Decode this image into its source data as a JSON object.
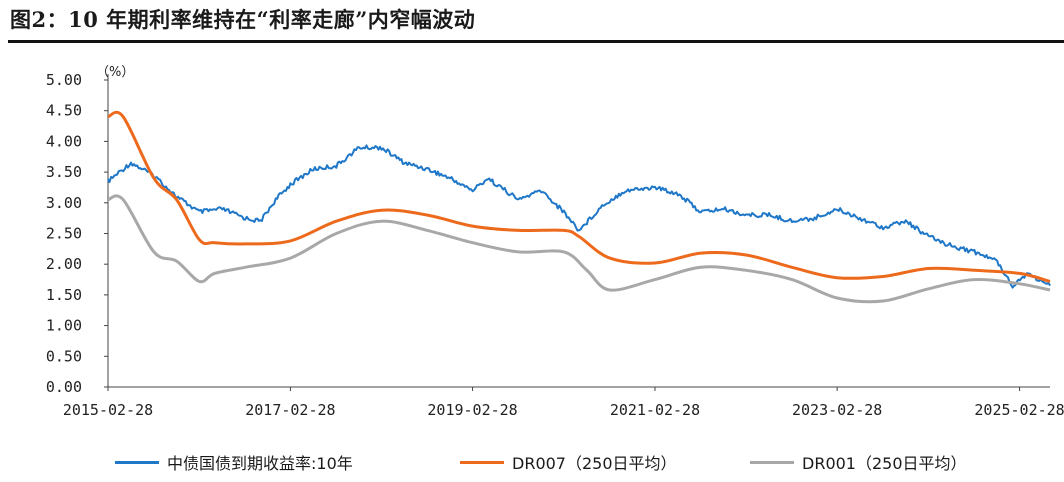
{
  "title": "图2：10 年期利率维持在“利率走廊”内窄幅波动",
  "chart_data": {
    "type": "line",
    "unit_label": "（%）",
    "ylim": [
      0,
      5
    ],
    "yticks": [
      "5.00",
      "4.50",
      "4.00",
      "3.50",
      "3.00",
      "2.50",
      "2.00",
      "1.50",
      "1.00",
      "0.50",
      "0.00"
    ],
    "xlim": [
      "2015-02-28",
      "2025-06-30"
    ],
    "xticks": [
      "2015-02-28",
      "2017-02-28",
      "2019-02-28",
      "2021-02-28",
      "2023-02-28",
      "2025-02-28"
    ],
    "grid": false,
    "legend_position": "bottom",
    "series": [
      {
        "name": "中债国债到期收益率:10年",
        "color": "#1f77c8",
        "x": [
          "2015-02-28",
          "2015-05-31",
          "2015-08-31",
          "2015-11-30",
          "2016-02-29",
          "2016-05-31",
          "2016-08-31",
          "2016-10-31",
          "2016-12-31",
          "2017-02-28",
          "2017-05-31",
          "2017-08-31",
          "2017-11-30",
          "2018-02-28",
          "2018-05-31",
          "2018-08-31",
          "2018-11-30",
          "2019-02-28",
          "2019-04-30",
          "2019-08-31",
          "2019-11-30",
          "2020-02-29",
          "2020-04-30",
          "2020-07-31",
          "2020-10-31",
          "2021-02-28",
          "2021-05-31",
          "2021-08-31",
          "2021-11-30",
          "2022-02-28",
          "2022-05-31",
          "2022-08-31",
          "2022-11-30",
          "2023-02-28",
          "2023-05-31",
          "2023-08-31",
          "2023-11-30",
          "2024-02-29",
          "2024-05-31",
          "2024-08-31",
          "2024-11-30",
          "2025-01-31",
          "2025-03-31",
          "2025-06-30"
        ],
        "values": [
          3.35,
          3.65,
          3.45,
          3.1,
          2.85,
          2.9,
          2.75,
          2.7,
          3.05,
          3.3,
          3.55,
          3.6,
          3.9,
          3.9,
          3.65,
          3.55,
          3.4,
          3.2,
          3.4,
          3.05,
          3.2,
          2.85,
          2.55,
          2.95,
          3.2,
          3.25,
          3.15,
          2.85,
          2.9,
          2.8,
          2.8,
          2.7,
          2.75,
          2.9,
          2.75,
          2.6,
          2.7,
          2.45,
          2.3,
          2.2,
          2.05,
          1.65,
          1.85,
          1.65
        ]
      },
      {
        "name": "DR007（250日平均）",
        "color": "#ed6a1c",
        "x": [
          "2015-02-28",
          "2015-04-30",
          "2015-08-31",
          "2015-11-30",
          "2016-02-29",
          "2016-04-30",
          "2016-08-31",
          "2017-02-28",
          "2017-08-31",
          "2018-02-28",
          "2018-08-31",
          "2019-02-28",
          "2019-08-31",
          "2020-02-29",
          "2020-04-30",
          "2020-08-31",
          "2021-02-28",
          "2021-08-31",
          "2022-02-28",
          "2022-08-31",
          "2023-02-28",
          "2023-08-31",
          "2024-02-29",
          "2024-08-31",
          "2025-02-28",
          "2025-06-30"
        ],
        "values": [
          4.4,
          4.4,
          3.4,
          3.05,
          2.4,
          2.35,
          2.33,
          2.38,
          2.7,
          2.88,
          2.8,
          2.62,
          2.55,
          2.55,
          2.45,
          2.1,
          2.02,
          2.18,
          2.15,
          1.95,
          1.78,
          1.8,
          1.93,
          1.9,
          1.85,
          1.72
        ]
      },
      {
        "name": "DR001（250日平均）",
        "color": "#a8a8a8",
        "x": [
          "2015-02-28",
          "2015-04-30",
          "2015-08-31",
          "2015-11-30",
          "2016-02-29",
          "2016-04-30",
          "2016-08-31",
          "2017-02-28",
          "2017-08-31",
          "2018-02-28",
          "2018-08-31",
          "2019-02-28",
          "2019-08-31",
          "2020-02-29",
          "2020-05-31",
          "2020-08-31",
          "2021-02-28",
          "2021-08-31",
          "2022-02-28",
          "2022-08-31",
          "2023-02-28",
          "2023-08-31",
          "2024-02-29",
          "2024-08-31",
          "2025-02-28",
          "2025-06-30"
        ],
        "values": [
          3.05,
          3.05,
          2.2,
          2.05,
          1.72,
          1.85,
          1.95,
          2.1,
          2.5,
          2.7,
          2.55,
          2.35,
          2.2,
          2.2,
          1.9,
          1.58,
          1.75,
          1.95,
          1.9,
          1.75,
          1.45,
          1.4,
          1.6,
          1.75,
          1.68,
          1.58
        ]
      }
    ]
  }
}
